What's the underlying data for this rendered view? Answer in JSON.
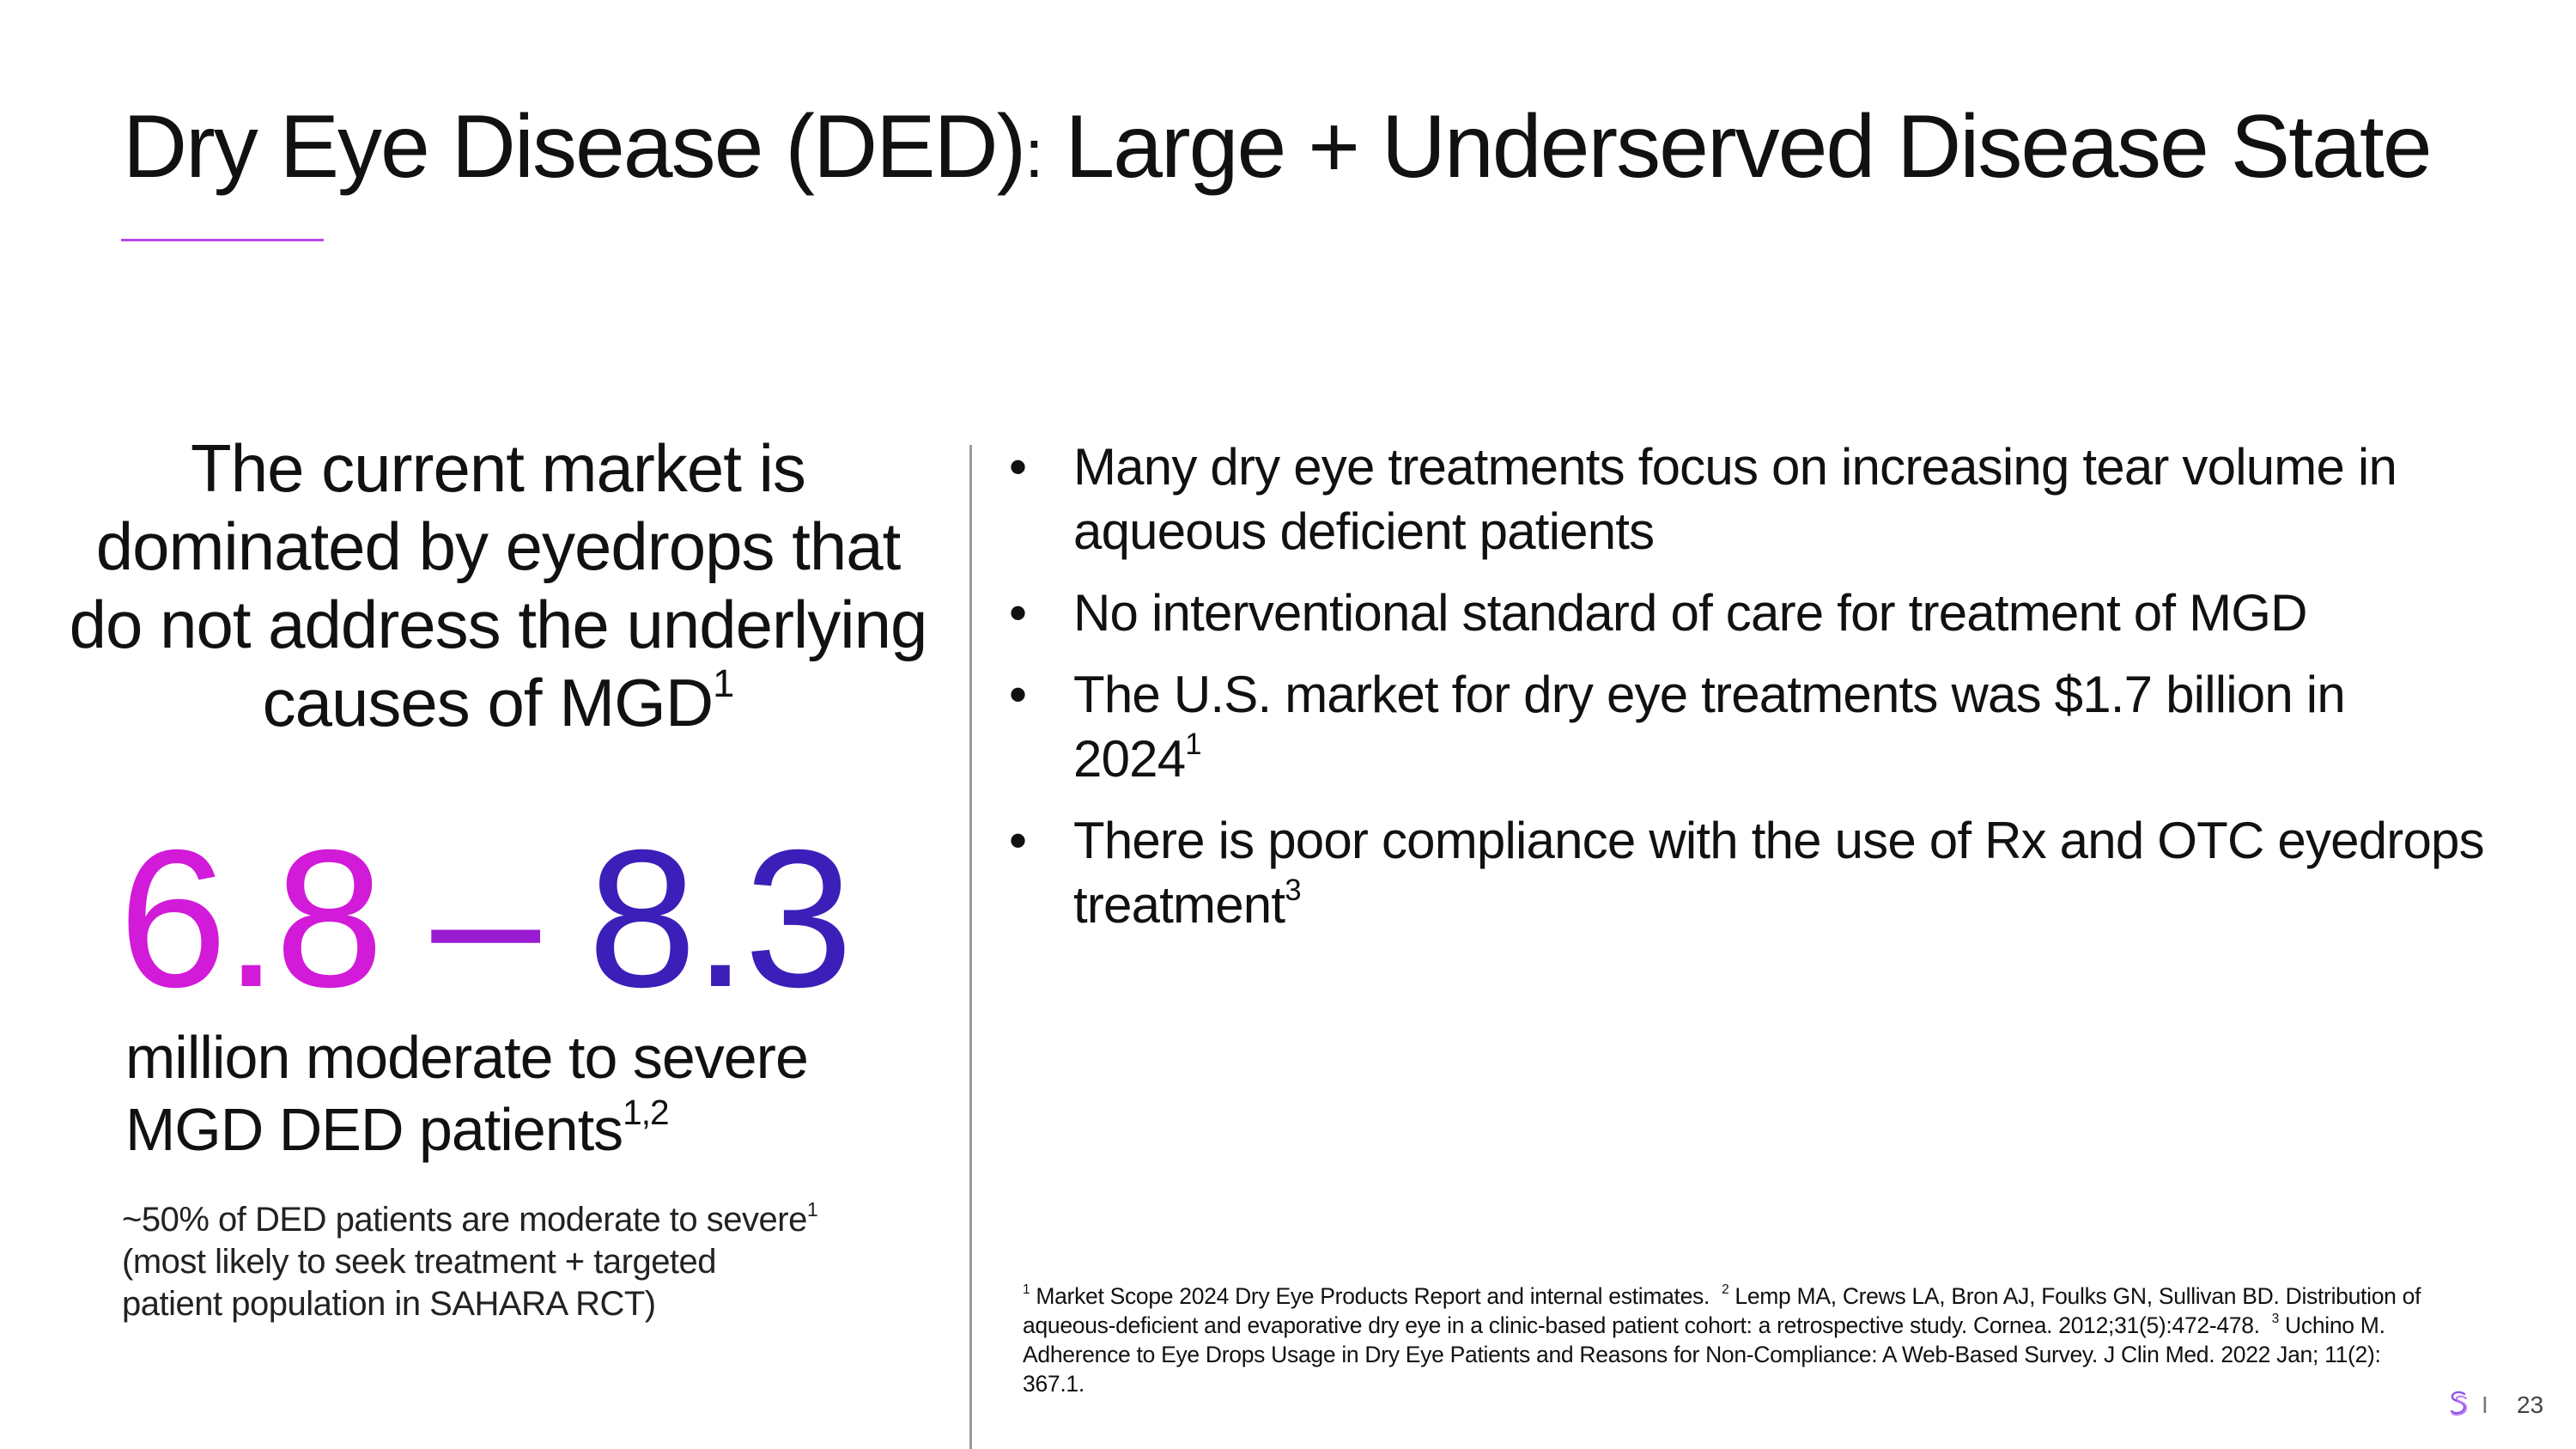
{
  "slide": {
    "title_main": "Dry Eye Disease (DED)",
    "title_colon": ":",
    "title_rest": " Large + Underserved Disease State",
    "accent_color": "#b84ae6"
  },
  "left": {
    "heading": "The current market is dominated by eyedrops that do not address the underlying causes of MGD",
    "heading_sup": "1",
    "range_low": "6.8",
    "range_dash": " – ",
    "range_high": "8.3",
    "range_colors": {
      "low": "#d21ad9",
      "dash": "#9a1ad2",
      "high": "#3b1fb8"
    },
    "caption_line1": "million moderate to severe",
    "caption_line2": "MGD DED patients",
    "caption_sup": "1,2",
    "note_line1": "~50% of DED patients are moderate to severe",
    "note_sup": "1",
    "note_line2": "(most likely to seek treatment + targeted",
    "note_line3": "patient population in SAHARA RCT)"
  },
  "bullets": [
    {
      "text": "Many dry eye treatments focus on increasing tear volume in aqueous deficient patients",
      "sup": ""
    },
    {
      "text": "No interventional standard of care for treatment of MGD",
      "sup": ""
    },
    {
      "text": "The U.S. market for dry eye treatments was $1.7 billion in 2024",
      "sup": "1"
    },
    {
      "text": "There is poor compliance with the use of Rx and OTC eyedrops treatment",
      "sup": "3"
    }
  ],
  "bullet_symbol": "•",
  "footnotes": {
    "fn1_mark": "1",
    "fn1": "Market Scope 2024 Dry Eye Products Report and internal estimates.",
    "fn2_mark": "2",
    "fn2": "Lemp MA, Crews LA, Bron AJ, Foulks GN, Sullivan BD. Distribution of aqueous-deficient and evaporative dry eye in a clinic-based patient cohort: a retrospective study. Cornea. 2012;31(5):472-478.",
    "fn3_mark": "3",
    "fn3": "Uchino M. Adherence to Eye Drops Usage in Dry Eye Patients and Reasons for Non-Compliance: A Web-Based Survey. J Clin Med. 2022 Jan; 11(2): 367.1."
  },
  "footer": {
    "logo_icon": "s-logo-icon",
    "separator": "I",
    "page_number": "23"
  }
}
